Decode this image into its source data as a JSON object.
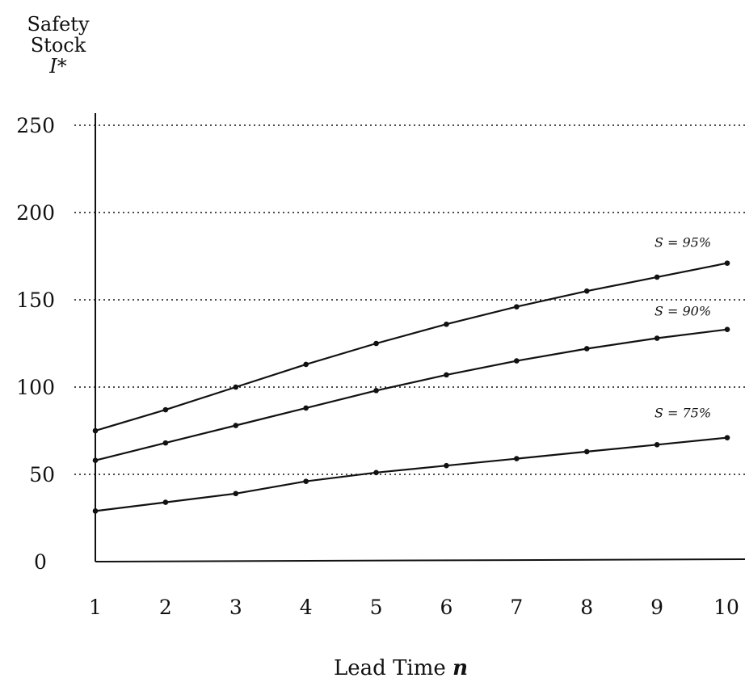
{
  "chart_data": {
    "type": "line",
    "ylabel_lines": [
      "Safety",
      "Stock",
      "I*"
    ],
    "xlabel_prefix": "Lead Time",
    "xlabel_var": "n",
    "x": [
      1,
      2,
      3,
      4,
      5,
      6,
      7,
      8,
      9,
      10
    ],
    "xlim": [
      1,
      10
    ],
    "ylim": [
      0,
      250
    ],
    "y_ticks": [
      0,
      50,
      100,
      150,
      200,
      250
    ],
    "x_ticks": [
      1,
      2,
      3,
      4,
      5,
      6,
      7,
      8,
      9,
      10
    ],
    "grid": "horizontal-dotted",
    "series": [
      {
        "name": "S = 95%",
        "values": [
          75,
          87,
          100,
          113,
          125,
          136,
          146,
          155,
          163,
          171
        ]
      },
      {
        "name": "S = 90%",
        "values": [
          58,
          68,
          78,
          88,
          98,
          107,
          115,
          122,
          128,
          133
        ]
      },
      {
        "name": "S = 75%",
        "values": [
          29,
          34,
          39,
          46,
          51,
          55,
          59,
          63,
          67,
          71
        ]
      }
    ]
  }
}
